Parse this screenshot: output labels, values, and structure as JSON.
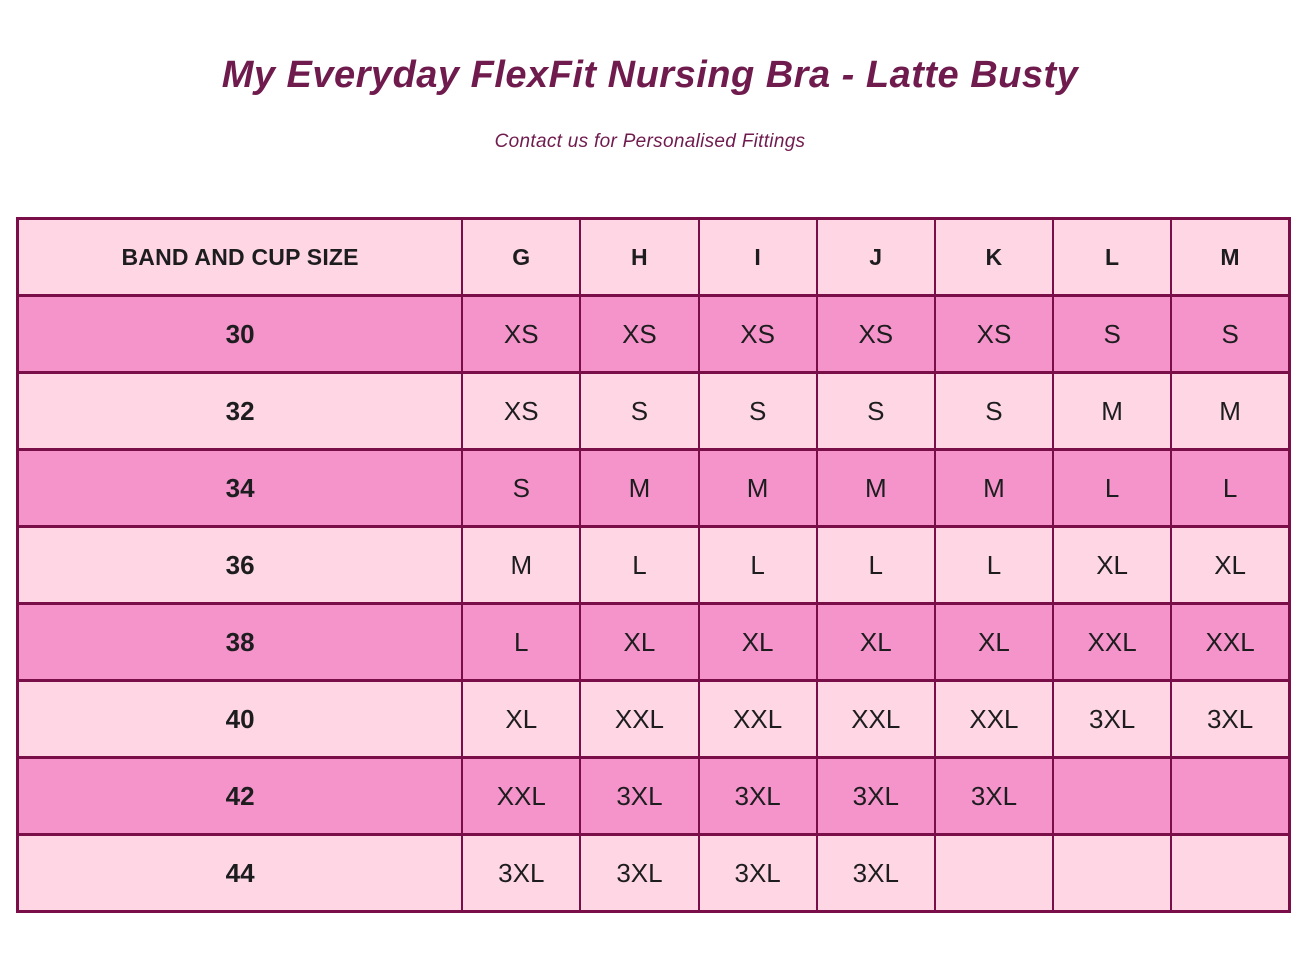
{
  "header": {
    "title": "My Everyday FlexFit Nursing Bra - Latte Busty",
    "subtitle": "Contact us for Personalised Fittings"
  },
  "table": {
    "columns": [
      "BAND AND CUP SIZE",
      "G",
      "H",
      "I",
      "J",
      "K",
      "L",
      "M"
    ],
    "rows": [
      {
        "band": "30",
        "values": [
          "XS",
          "XS",
          "XS",
          "XS",
          "XS",
          "S",
          "S"
        ]
      },
      {
        "band": "32",
        "values": [
          "XS",
          "S",
          "S",
          "S",
          "S",
          "M",
          "M"
        ]
      },
      {
        "band": "34",
        "values": [
          "S",
          "M",
          "M",
          "M",
          "M",
          "L",
          "L"
        ]
      },
      {
        "band": "36",
        "values": [
          "M",
          "L",
          "L",
          "L",
          "L",
          "XL",
          "XL"
        ]
      },
      {
        "band": "38",
        "values": [
          "L",
          "XL",
          "XL",
          "XL",
          "XL",
          "XXL",
          "XXL"
        ]
      },
      {
        "band": "40",
        "values": [
          "XL",
          "XXL",
          "XXL",
          "XXL",
          "XXL",
          "3XL",
          "3XL"
        ]
      },
      {
        "band": "42",
        "values": [
          "XXL",
          "3XL",
          "3XL",
          "3XL",
          "3XL",
          "",
          ""
        ]
      },
      {
        "band": "44",
        "values": [
          "3XL",
          "3XL",
          "3XL",
          "3XL",
          "",
          "",
          ""
        ]
      }
    ]
  },
  "colors": {
    "title": "#701b4e",
    "border": "#7a0e49",
    "light_row": "#ffd6e4",
    "dark_row": "#f494ca",
    "cell_text": "#1d1d1f"
  }
}
